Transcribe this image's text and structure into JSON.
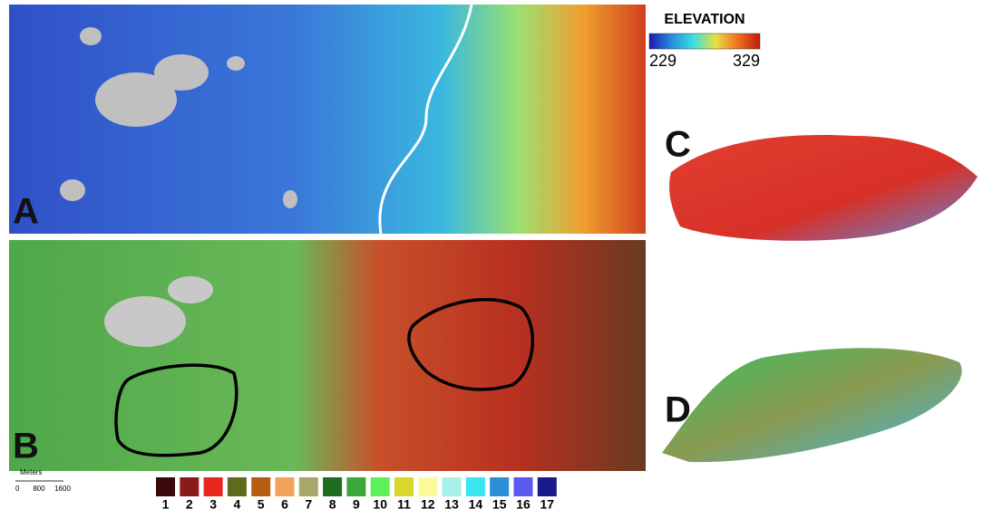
{
  "elevation_legend": {
    "title": "ELEVATION",
    "min_label": "229",
    "max_label": "329",
    "colors": [
      "#1a1ab0",
      "#2a8ae0",
      "#3ae0e0",
      "#e8e040",
      "#f07020",
      "#c01a10"
    ]
  },
  "panels": [
    {
      "label": "A"
    },
    {
      "label": "B"
    },
    {
      "label": "C"
    },
    {
      "label": "D"
    }
  ],
  "scale_bar": {
    "unit": "Meters",
    "ticks": [
      "0",
      "800",
      "1600"
    ]
  },
  "class_legend": {
    "items": [
      {
        "label": "1",
        "color": "#3a0a0a"
      },
      {
        "label": "2",
        "color": "#8b1a1a"
      },
      {
        "label": "3",
        "color": "#e8261e"
      },
      {
        "label": "4",
        "color": "#5e6b1a"
      },
      {
        "label": "5",
        "color": "#b85c12"
      },
      {
        "label": "6",
        "color": "#f2a25a"
      },
      {
        "label": "7",
        "color": "#a8a86a"
      },
      {
        "label": "8",
        "color": "#1f6b1f"
      },
      {
        "label": "9",
        "color": "#3aa83a"
      },
      {
        "label": "10",
        "color": "#5ef05a"
      },
      {
        "label": "11",
        "color": "#d8d82a"
      },
      {
        "label": "12",
        "color": "#fafa9a"
      },
      {
        "label": "13",
        "color": "#a8f0ea"
      },
      {
        "label": "14",
        "color": "#3ae6f0"
      },
      {
        "label": "15",
        "color": "#2a90d8"
      },
      {
        "label": "16",
        "color": "#5a5af0"
      },
      {
        "label": "17",
        "color": "#1a1a8a"
      }
    ]
  }
}
